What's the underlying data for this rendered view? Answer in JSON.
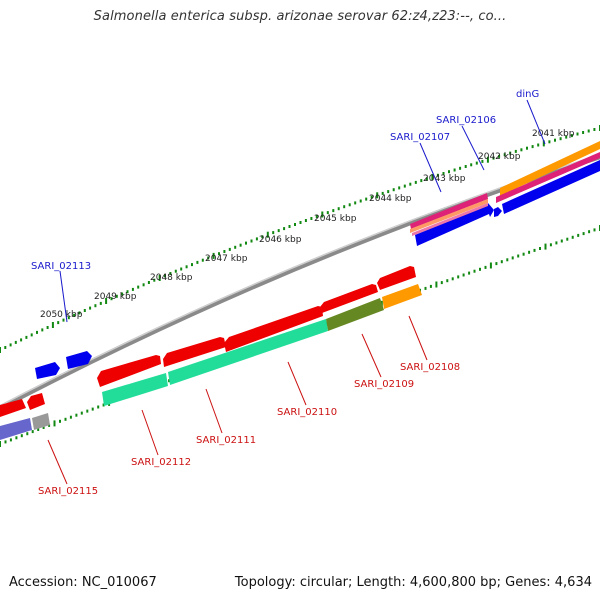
{
  "title": "Salmonella enterica subsp. arizonae serovar 62:z4,z23:--, co...",
  "footer": {
    "accession": "Accession: NC_010067",
    "summary": "Topology: circular; Length: 4,600,800 bp; Genes: 4,634"
  },
  "colors": {
    "background": "#ffffff",
    "backbone": "#8a8a8a",
    "tick": "#118811",
    "forward_gene_label": "#1a1acc",
    "reverse_gene_label": "#cc1111",
    "forward_gene": "#0000ee",
    "reverse_gene": "#ee0000",
    "green_feature": "#22dd99",
    "olive_feature": "#668822",
    "orange_feature": "#ff9900",
    "magenta_feature": "#dd2277",
    "pink_feature": "#ee5599",
    "grey_feature": "#999999",
    "lavender_feature": "#6666cc"
  },
  "kbp_labels": [
    "2041 kbp",
    "2042 kbp",
    "2043 kbp",
    "2044 kbp",
    "2045 kbp",
    "2046 kbp",
    "2047 kbp",
    "2048 kbp",
    "2049 kbp",
    "2050 kbp"
  ],
  "gene_labels": {
    "forward": [
      "dinG",
      "SARI_02106",
      "SARI_02107",
      "SARI_02113"
    ],
    "reverse": [
      "SARI_02108",
      "SARI_02109",
      "SARI_02110",
      "SARI_02111",
      "SARI_02112",
      "SARI_02115"
    ]
  }
}
